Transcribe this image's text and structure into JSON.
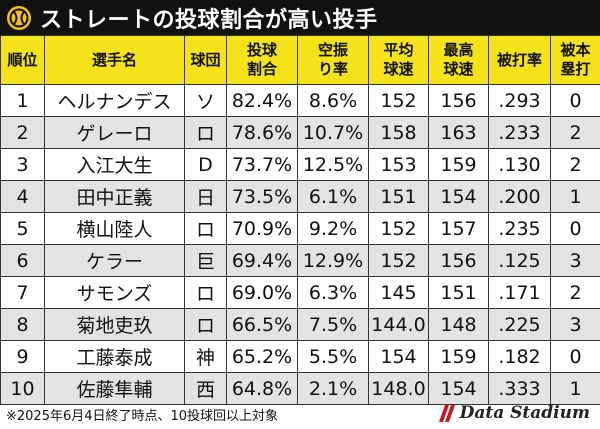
{
  "title": "ストレートの投球割合が高い投手",
  "headers": [
    "順位",
    "選手名",
    "球団",
    "投球割合",
    "空振り率",
    "平均球速",
    "最高球速",
    "被打率",
    "被本塁打"
  ],
  "header_lines": [
    [
      "順位"
    ],
    [
      "選手名"
    ],
    [
      "球団"
    ],
    [
      "投球",
      "割合"
    ],
    [
      "空振",
      "り率"
    ],
    [
      "平均",
      "球速"
    ],
    [
      "最高",
      "球速"
    ],
    [
      "被打率"
    ],
    [
      "被本",
      "塁打"
    ]
  ],
  "rows": [
    [
      "1",
      "ヘルナンデス",
      "ソ",
      "82.4%",
      "8.6%",
      "152",
      "156",
      ".293",
      "0"
    ],
    [
      "2",
      "ゲレーロ",
      "ロ",
      "78.6%",
      "10.7%",
      "158",
      "163",
      ".233",
      "2"
    ],
    [
      "3",
      "入江大生",
      "D",
      "73.7%",
      "12.5%",
      "153",
      "159",
      ".130",
      "2"
    ],
    [
      "4",
      "田中正義",
      "日",
      "73.5%",
      "6.1%",
      "151",
      "154",
      ".200",
      "1"
    ],
    [
      "5",
      "横山陸人",
      "ロ",
      "70.9%",
      "9.2%",
      "152",
      "157",
      ".235",
      "0"
    ],
    [
      "6",
      "ケラー",
      "巨",
      "69.4%",
      "12.9%",
      "152",
      "156",
      ".125",
      "3"
    ],
    [
      "7",
      "サモンズ",
      "ロ",
      "69.0%",
      "6.3%",
      "145",
      "151",
      ".171",
      "2"
    ],
    [
      "8",
      "菊地吏玖",
      "ロ",
      "66.5%",
      "7.5%",
      "144.0",
      "148",
      ".225",
      "3"
    ],
    [
      "9",
      "工藤泰成",
      "神",
      "65.2%",
      "5.5%",
      "154",
      "159",
      ".182",
      "0"
    ],
    [
      "10",
      "佐藤隼輔",
      "西",
      "64.8%",
      "2.1%",
      "148.0",
      "154",
      ".333",
      "1"
    ]
  ],
  "footnote": "※2025年6月4日終了時点、10投球回以上対象",
  "brand": "Data Stadium",
  "colors": {
    "header_bg": "#f4e21a",
    "title_bg": "#111111",
    "alt_row_bg": "#e3e3e3"
  },
  "icons": {
    "title": "baseball-logo-icon",
    "brand": "data-stadium-logo-icon"
  }
}
